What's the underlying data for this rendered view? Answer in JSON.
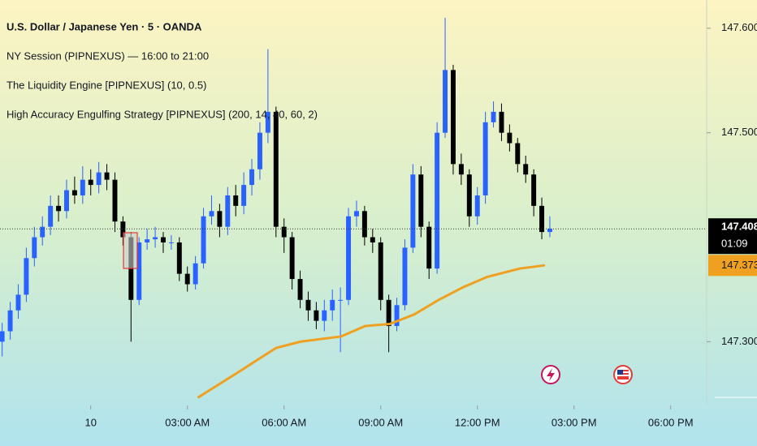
{
  "chart_data": {
    "type": "candlestick",
    "title": "U.S. Dollar / Japanese Yen · 5 · OANDA",
    "indicators": [
      "NY Session (PIPNEXUS) — 16:00 to 21:00",
      "The Liquidity Engine [PIPNEXUS] (10, 0.5)",
      "High Accuracy Engulfing Strategy [PIPNEXUS] (200, 14, 40, 60, 2)"
    ],
    "x": [
      -165,
      -150,
      -135,
      -120,
      -105,
      -90,
      -75,
      -60,
      -45,
      -30,
      -15,
      0,
      15,
      30,
      45,
      60,
      75,
      90,
      105,
      120,
      135,
      150,
      165,
      180,
      195,
      210,
      225,
      240,
      255,
      270,
      285,
      300,
      315,
      330,
      345,
      360,
      375,
      390,
      405,
      420,
      435,
      450,
      465,
      480,
      495,
      510,
      525,
      540,
      555,
      570,
      585,
      600,
      615,
      630,
      645,
      660,
      675,
      690,
      705,
      720,
      735,
      750,
      765,
      780,
      795,
      810,
      825,
      840,
      855
    ],
    "open": [
      147.3,
      147.31,
      147.33,
      147.345,
      147.38,
      147.4,
      147.41,
      147.43,
      147.425,
      147.445,
      147.44,
      147.455,
      147.45,
      147.462,
      147.455,
      147.415,
      147.4,
      147.34,
      147.395,
      147.398,
      147.4,
      147.395,
      147.395,
      147.365,
      147.355,
      147.375,
      147.42,
      147.425,
      147.41,
      147.44,
      147.43,
      147.45,
      147.465,
      147.5,
      147.52,
      147.41,
      147.4,
      147.36,
      147.34,
      147.33,
      147.32,
      147.33,
      147.34,
      147.34,
      147.42,
      147.425,
      147.4,
      147.395,
      147.34,
      147.315,
      147.335,
      147.39,
      147.46,
      147.41,
      147.37,
      147.5,
      147.56,
      147.47,
      147.46,
      147.42,
      147.44,
      147.51,
      147.52,
      147.5,
      147.49,
      147.47,
      147.46,
      147.43,
      147.405
    ],
    "high": [
      147.318,
      147.338,
      147.355,
      147.39,
      147.41,
      147.42,
      147.44,
      147.44,
      147.455,
      147.458,
      147.468,
      147.465,
      147.472,
      147.47,
      147.462,
      147.42,
      147.405,
      147.4,
      147.408,
      147.41,
      147.405,
      147.402,
      147.4,
      147.372,
      147.382,
      147.428,
      147.44,
      147.432,
      147.448,
      147.45,
      147.462,
      147.475,
      147.51,
      147.58,
      147.525,
      147.418,
      147.405,
      147.368,
      147.348,
      147.338,
      147.34,
      147.35,
      147.352,
      147.428,
      147.435,
      147.43,
      147.408,
      147.4,
      147.345,
      147.342,
      147.398,
      147.47,
      147.468,
      147.415,
      147.51,
      147.61,
      147.565,
      147.48,
      147.465,
      147.448,
      147.52,
      147.53,
      147.528,
      147.508,
      147.495,
      147.478,
      147.465,
      147.438,
      147.42
    ],
    "low": [
      147.286,
      147.302,
      147.322,
      147.338,
      147.372,
      147.392,
      147.402,
      147.415,
      147.418,
      147.432,
      147.432,
      147.44,
      147.442,
      147.445,
      147.405,
      147.392,
      147.3,
      147.335,
      147.388,
      147.39,
      147.385,
      147.388,
      147.358,
      147.348,
      147.35,
      147.37,
      147.412,
      147.4,
      147.402,
      147.42,
      147.422,
      147.44,
      147.455,
      147.49,
      147.4,
      147.385,
      147.35,
      147.332,
      147.32,
      147.312,
      147.31,
      147.32,
      147.29,
      147.335,
      147.41,
      147.392,
      147.385,
      147.33,
      147.29,
      147.31,
      147.33,
      147.385,
      147.4,
      147.36,
      147.365,
      147.495,
      147.46,
      147.45,
      147.41,
      147.412,
      147.432,
      147.505,
      147.492,
      147.482,
      147.462,
      147.452,
      147.42,
      147.398,
      147.4
    ],
    "close": [
      147.31,
      147.33,
      147.345,
      147.38,
      147.4,
      147.41,
      147.43,
      147.425,
      147.445,
      147.44,
      147.455,
      147.45,
      147.462,
      147.455,
      147.415,
      147.4,
      147.34,
      147.395,
      147.398,
      147.4,
      147.395,
      147.395,
      147.365,
      147.355,
      147.375,
      147.42,
      147.425,
      147.41,
      147.44,
      147.43,
      147.45,
      147.465,
      147.5,
      147.52,
      147.41,
      147.4,
      147.36,
      147.34,
      147.33,
      147.32,
      147.33,
      147.34,
      147.34,
      147.42,
      147.425,
      147.4,
      147.395,
      147.34,
      147.315,
      147.335,
      147.39,
      147.46,
      147.41,
      147.37,
      147.5,
      147.56,
      147.47,
      147.46,
      147.42,
      147.44,
      147.51,
      147.52,
      147.5,
      147.49,
      147.47,
      147.46,
      147.43,
      147.405,
      147.408
    ],
    "up_color": "#2962ff",
    "down_color": "#000000",
    "ma": {
      "color": "#f0a020",
      "x": [
        201,
        269,
        345,
        390,
        466,
        511,
        557,
        602,
        648,
        693,
        738,
        799,
        844
      ],
      "values": [
        147.247,
        147.269,
        147.294,
        147.3,
        147.305,
        147.315,
        147.317,
        147.326,
        147.34,
        147.352,
        147.362,
        147.37,
        147.373
      ]
    },
    "last_price": 147.408,
    "countdown": "01:09",
    "xlim": [
      -169,
      1147
    ],
    "xticks": [
      {
        "value": 0,
        "label": "10"
      },
      {
        "value": 180,
        "label": "03:00 AM"
      },
      {
        "value": 360,
        "label": "06:00 AM"
      },
      {
        "value": 540,
        "label": "09:00 AM"
      },
      {
        "value": 720,
        "label": "12:00 PM"
      },
      {
        "value": 900,
        "label": "03:00 PM"
      },
      {
        "value": 1080,
        "label": "06:00 PM"
      }
    ],
    "ylim": [
      147.239,
      147.627
    ],
    "yticks": [
      {
        "value": 147.3,
        "label": "147.300"
      },
      {
        "value": 147.5,
        "label": "147.500"
      },
      {
        "value": 147.6,
        "label": "147.600"
      }
    ],
    "grid": false
  }
}
